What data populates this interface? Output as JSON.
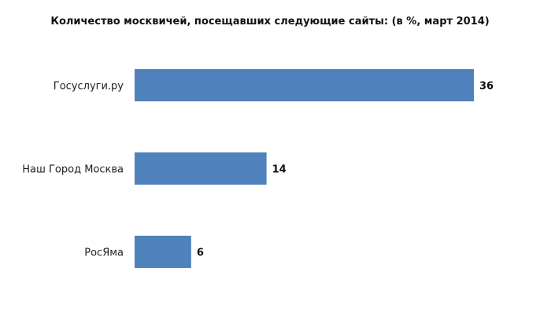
{
  "chart_data": {
    "type": "bar",
    "orientation": "horizontal",
    "title": "Количество москвичей, посещавших следующие сайты: (в %, март 2014)",
    "categories": [
      "Госуслуги.ру",
      "Наш Город Москва",
      "РосЯма"
    ],
    "values": [
      36,
      14,
      6
    ],
    "xlabel": "",
    "ylabel": "",
    "xlim": [
      0,
      36
    ],
    "grid": false,
    "legend": "none",
    "bar_color": "#4f81bd"
  }
}
